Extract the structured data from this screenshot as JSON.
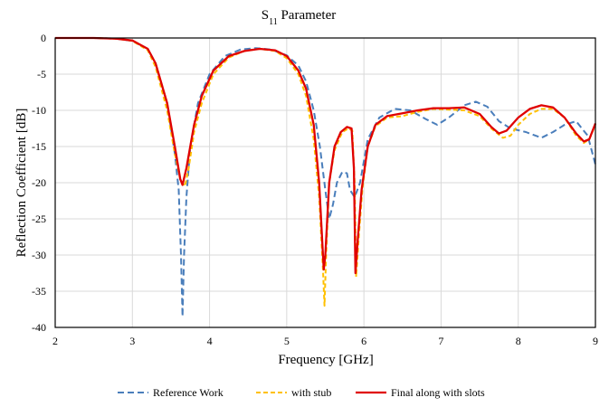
{
  "chart_data": {
    "type": "line",
    "title": "S11 Parameter",
    "title_main": "S",
    "title_sub": "11",
    "title_rest": " Parameter",
    "xlabel": "Frequency [GHz]",
    "ylabel": "Reflection Coefficient [dB]",
    "xlim": [
      2,
      9
    ],
    "ylim": [
      -40,
      0
    ],
    "xticks": [
      2,
      3,
      4,
      5,
      6,
      7,
      8,
      9
    ],
    "yticks": [
      0,
      -5,
      -10,
      -15,
      -20,
      -25,
      -30,
      -35,
      -40
    ],
    "grid": true,
    "legend_position": "bottom",
    "series": [
      {
        "name": "Reference Work",
        "color": "#4a7ebb",
        "style": "dashed",
        "points": [
          [
            2.0,
            0
          ],
          [
            2.5,
            0
          ],
          [
            2.8,
            -0.1
          ],
          [
            3.0,
            -0.4
          ],
          [
            3.2,
            -1.5
          ],
          [
            3.3,
            -3.5
          ],
          [
            3.45,
            -9
          ],
          [
            3.55,
            -16
          ],
          [
            3.6,
            -21
          ],
          [
            3.63,
            -30
          ],
          [
            3.65,
            -38.5
          ],
          [
            3.67,
            -30
          ],
          [
            3.7,
            -22
          ],
          [
            3.75,
            -15
          ],
          [
            3.85,
            -9
          ],
          [
            4.0,
            -5
          ],
          [
            4.2,
            -2.5
          ],
          [
            4.4,
            -1.6
          ],
          [
            4.6,
            -1.4
          ],
          [
            4.8,
            -1.6
          ],
          [
            5.0,
            -2.4
          ],
          [
            5.15,
            -3.8
          ],
          [
            5.25,
            -6
          ],
          [
            5.35,
            -10
          ],
          [
            5.43,
            -15
          ],
          [
            5.5,
            -21
          ],
          [
            5.55,
            -25
          ],
          [
            5.6,
            -23
          ],
          [
            5.65,
            -20
          ],
          [
            5.72,
            -18.5
          ],
          [
            5.78,
            -18.7
          ],
          [
            5.82,
            -21
          ],
          [
            5.88,
            -22
          ],
          [
            5.95,
            -20
          ],
          [
            6.05,
            -14
          ],
          [
            6.2,
            -11
          ],
          [
            6.4,
            -9.8
          ],
          [
            6.6,
            -10
          ],
          [
            6.8,
            -11.2
          ],
          [
            6.95,
            -12
          ],
          [
            7.1,
            -11
          ],
          [
            7.3,
            -9.3
          ],
          [
            7.45,
            -8.8
          ],
          [
            7.6,
            -9.5
          ],
          [
            7.75,
            -11.5
          ],
          [
            7.9,
            -12.5
          ],
          [
            8.1,
            -13
          ],
          [
            8.3,
            -13.8
          ],
          [
            8.45,
            -13
          ],
          [
            8.6,
            -12
          ],
          [
            8.75,
            -11.5
          ],
          [
            8.9,
            -13.5
          ],
          [
            9.0,
            -17.5
          ]
        ]
      },
      {
        "name": "with stub",
        "color": "#ffc000",
        "style": "dashed",
        "points": [
          [
            2.0,
            0
          ],
          [
            2.5,
            0
          ],
          [
            2.8,
            -0.1
          ],
          [
            3.0,
            -0.4
          ],
          [
            3.2,
            -1.7
          ],
          [
            3.3,
            -4
          ],
          [
            3.45,
            -10
          ],
          [
            3.55,
            -16
          ],
          [
            3.62,
            -19.5
          ],
          [
            3.68,
            -20.5
          ],
          [
            3.73,
            -18
          ],
          [
            3.8,
            -13
          ],
          [
            3.9,
            -9
          ],
          [
            4.05,
            -5
          ],
          [
            4.25,
            -2.7
          ],
          [
            4.45,
            -1.8
          ],
          [
            4.65,
            -1.5
          ],
          [
            4.85,
            -1.8
          ],
          [
            5.0,
            -2.8
          ],
          [
            5.15,
            -5
          ],
          [
            5.25,
            -8
          ],
          [
            5.35,
            -14
          ],
          [
            5.42,
            -22
          ],
          [
            5.47,
            -32
          ],
          [
            5.49,
            -37
          ],
          [
            5.51,
            -30
          ],
          [
            5.55,
            -20
          ],
          [
            5.62,
            -15.5
          ],
          [
            5.72,
            -13
          ],
          [
            5.8,
            -12.5
          ],
          [
            5.85,
            -12.8
          ],
          [
            5.88,
            -20
          ],
          [
            5.9,
            -33
          ],
          [
            5.93,
            -28
          ],
          [
            5.98,
            -21
          ],
          [
            6.05,
            -15
          ],
          [
            6.15,
            -12.2
          ],
          [
            6.3,
            -11
          ],
          [
            6.5,
            -10.8
          ],
          [
            6.7,
            -10.2
          ],
          [
            6.9,
            -9.8
          ],
          [
            7.1,
            -9.9
          ],
          [
            7.3,
            -10
          ],
          [
            7.5,
            -10.8
          ],
          [
            7.65,
            -12.5
          ],
          [
            7.8,
            -13.8
          ],
          [
            7.9,
            -13.5
          ],
          [
            8.0,
            -12
          ],
          [
            8.15,
            -10.5
          ],
          [
            8.3,
            -9.8
          ],
          [
            8.45,
            -9.8
          ],
          [
            8.6,
            -11
          ],
          [
            8.75,
            -13.5
          ],
          [
            8.85,
            -14.5
          ],
          [
            8.92,
            -14
          ],
          [
            9.0,
            -12
          ]
        ]
      },
      {
        "name": "Final along with slots",
        "color": "#e00000",
        "style": "solid",
        "points": [
          [
            2.0,
            0
          ],
          [
            2.5,
            0
          ],
          [
            2.8,
            -0.1
          ],
          [
            3.0,
            -0.35
          ],
          [
            3.2,
            -1.5
          ],
          [
            3.3,
            -3.5
          ],
          [
            3.45,
            -9
          ],
          [
            3.55,
            -15
          ],
          [
            3.62,
            -19.5
          ],
          [
            3.65,
            -20.3
          ],
          [
            3.7,
            -18
          ],
          [
            3.8,
            -12
          ],
          [
            3.9,
            -8
          ],
          [
            4.05,
            -4.5
          ],
          [
            4.25,
            -2.5
          ],
          [
            4.45,
            -1.8
          ],
          [
            4.65,
            -1.5
          ],
          [
            4.85,
            -1.7
          ],
          [
            5.0,
            -2.5
          ],
          [
            5.15,
            -4.5
          ],
          [
            5.25,
            -7
          ],
          [
            5.35,
            -12
          ],
          [
            5.42,
            -20
          ],
          [
            5.47,
            -30
          ],
          [
            5.48,
            -32
          ],
          [
            5.5,
            -30
          ],
          [
            5.55,
            -20
          ],
          [
            5.62,
            -15
          ],
          [
            5.7,
            -13
          ],
          [
            5.78,
            -12.3
          ],
          [
            5.84,
            -12.5
          ],
          [
            5.87,
            -18
          ],
          [
            5.89,
            -32.5
          ],
          [
            5.92,
            -28
          ],
          [
            5.97,
            -21
          ],
          [
            6.05,
            -15
          ],
          [
            6.15,
            -12
          ],
          [
            6.3,
            -10.8
          ],
          [
            6.5,
            -10.4
          ],
          [
            6.7,
            -10
          ],
          [
            6.9,
            -9.7
          ],
          [
            7.1,
            -9.7
          ],
          [
            7.3,
            -9.6
          ],
          [
            7.5,
            -10.5
          ],
          [
            7.65,
            -12.3
          ],
          [
            7.75,
            -13.2
          ],
          [
            7.85,
            -12.8
          ],
          [
            8.0,
            -11
          ],
          [
            8.15,
            -9.8
          ],
          [
            8.3,
            -9.3
          ],
          [
            8.45,
            -9.6
          ],
          [
            8.6,
            -11
          ],
          [
            8.75,
            -13.2
          ],
          [
            8.85,
            -14.3
          ],
          [
            8.92,
            -14
          ],
          [
            9.0,
            -11.8
          ]
        ]
      }
    ]
  }
}
